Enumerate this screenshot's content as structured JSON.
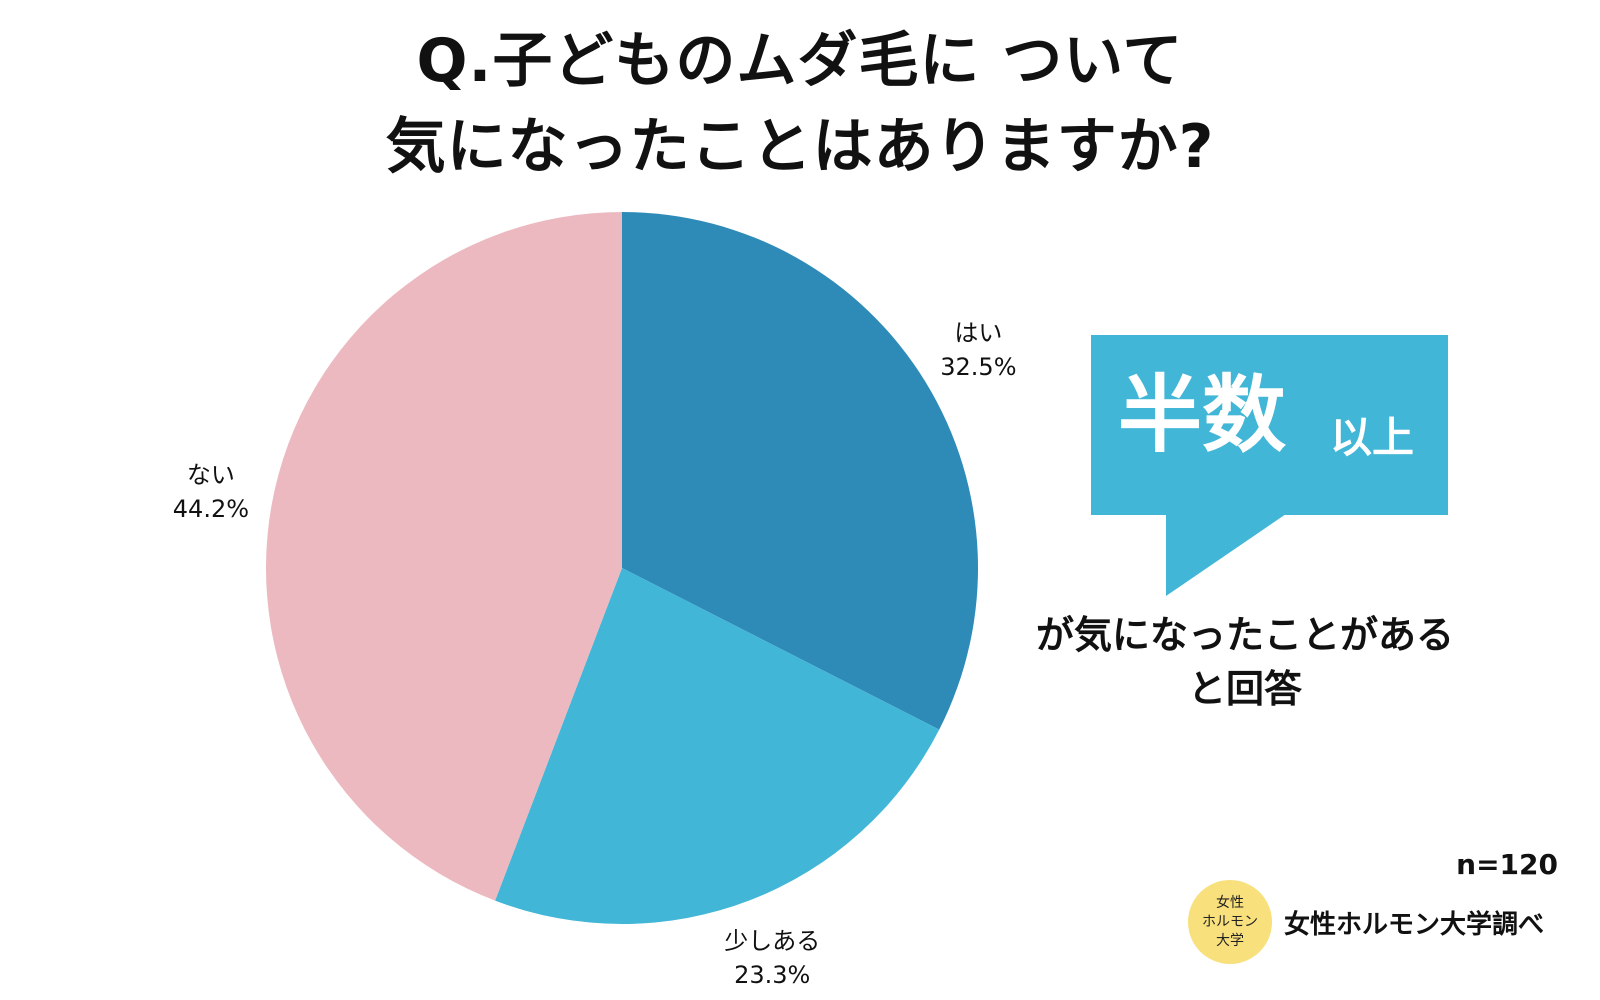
{
  "title": {
    "line1": "Q.子どものムダ毛に ついて",
    "line2": "気になったことはありますか?"
  },
  "chart_data": {
    "type": "pie",
    "start_angle_deg": 0,
    "direction": "clockwise",
    "slices": [
      {
        "label": "はい",
        "value": 32.5,
        "value_label": "32.5%",
        "color": "#2e8bb8"
      },
      {
        "label": "少しある",
        "value": 23.3,
        "value_label": "23.3%",
        "color": "#41b6d6"
      },
      {
        "label": "ない",
        "value": 44.2,
        "value_label": "44.2%",
        "color": "#ecb9c0"
      }
    ]
  },
  "callout": {
    "main": "半数",
    "small": "以上",
    "text_line1": "が気になったことがある",
    "text_line2": "と回答",
    "color": "#41b6d6"
  },
  "sample_size": "n=120",
  "source": {
    "badge_line1": "女性",
    "badge_line2": "ホルモン",
    "badge_line3": "大学",
    "text": "女性ホルモン大学調べ"
  }
}
